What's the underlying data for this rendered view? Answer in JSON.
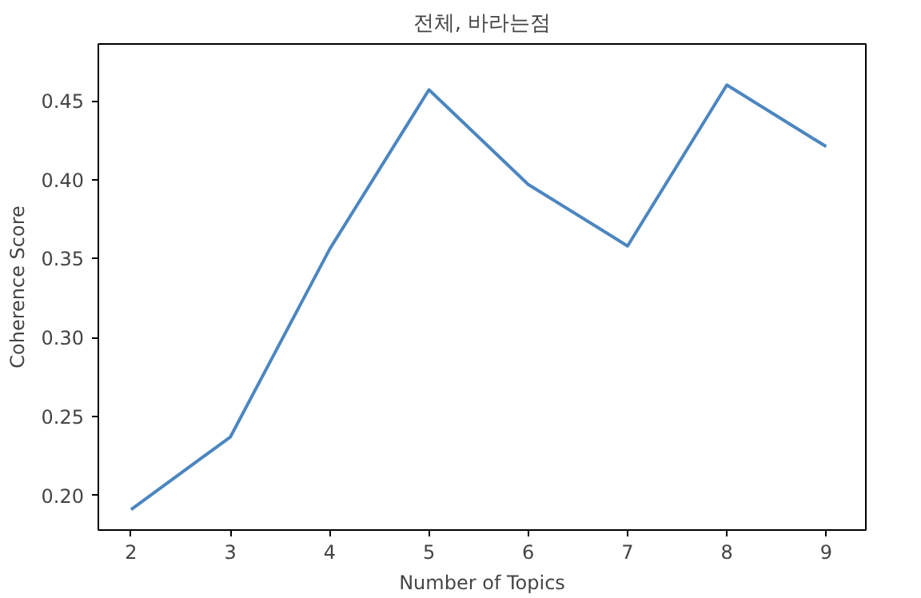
{
  "chart_data": {
    "type": "line",
    "title": "전체, 바라는점",
    "xlabel": "Number of Topics",
    "ylabel": "Coherence Score",
    "x": [
      2,
      3,
      4,
      5,
      6,
      7,
      8,
      9
    ],
    "series": [
      {
        "color": "#4c86c0",
        "values": [
          0.191,
          0.237,
          0.356,
          0.457,
          0.397,
          0.358,
          0.46,
          0.421
        ]
      }
    ],
    "xlim": [
      1.67,
      9.4
    ],
    "ylim": [
      0.178,
      0.486
    ],
    "xticks": [
      2,
      3,
      4,
      5,
      6,
      7,
      8,
      9
    ],
    "yticks": [
      {
        "value": 0.2,
        "label": "0.20"
      },
      {
        "value": 0.25,
        "label": "0.25"
      },
      {
        "value": 0.3,
        "label": "0.30"
      },
      {
        "value": 0.35,
        "label": "0.35"
      },
      {
        "value": 0.4,
        "label": "0.40"
      },
      {
        "value": 0.45,
        "label": "0.45"
      }
    ],
    "line_style": "solid"
  }
}
